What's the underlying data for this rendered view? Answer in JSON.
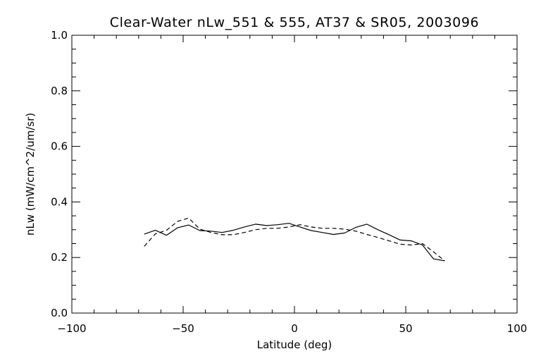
{
  "chart_data": {
    "type": "line",
    "title": "Clear-Water nLw_551 & 555, AT37 & SR05, 2003096",
    "xlabel": "Latitude (deg)",
    "ylabel": "nLw (mW/cm^2/um/sr)",
    "xlim": [
      -100,
      100
    ],
    "ylim": [
      0.0,
      1.0
    ],
    "xticks": [
      -100,
      -50,
      0,
      50,
      100
    ],
    "xtick_labels": [
      "−100",
      "−50",
      "0",
      "50",
      "100"
    ],
    "yticks": [
      0.0,
      0.2,
      0.4,
      0.6,
      0.8,
      1.0
    ],
    "ytick_labels": [
      "0.0",
      "0.2",
      "0.4",
      "0.6",
      "0.8",
      "1.0"
    ],
    "grid": false,
    "series": [
      {
        "style": "solid",
        "color": "#000000",
        "x": [
          -67.5,
          -62.5,
          -57.5,
          -52.5,
          -47.5,
          -42.5,
          -37.5,
          -32.5,
          -27.5,
          -22.5,
          -17.5,
          -12.5,
          -7.5,
          -2.5,
          2.5,
          7.5,
          12.5,
          17.5,
          22.5,
          27.5,
          32.5,
          37.5,
          42.5,
          47.5,
          52.5,
          57.5,
          62.5,
          67.5
        ],
        "y": [
          0.284,
          0.298,
          0.28,
          0.307,
          0.317,
          0.297,
          0.295,
          0.29,
          0.298,
          0.31,
          0.32,
          0.315,
          0.318,
          0.323,
          0.31,
          0.297,
          0.29,
          0.283,
          0.288,
          0.308,
          0.32,
          0.3,
          0.282,
          0.263,
          0.26,
          0.245,
          0.195,
          0.188
        ]
      },
      {
        "style": "dashed",
        "color": "#000000",
        "x": [
          -67.5,
          -62.5,
          -57.5,
          -52.5,
          -47.5,
          -42.5,
          -37.5,
          -32.5,
          -27.5,
          -22.5,
          -17.5,
          -12.5,
          -7.5,
          -2.5,
          2.5,
          7.5,
          12.5,
          17.5,
          22.5,
          27.5,
          32.5,
          37.5,
          42.5,
          47.5,
          52.5,
          57.5,
          62.5,
          67.5
        ],
        "y": [
          0.24,
          0.285,
          0.298,
          0.33,
          0.342,
          0.302,
          0.29,
          0.282,
          0.282,
          0.29,
          0.3,
          0.305,
          0.305,
          0.31,
          0.318,
          0.31,
          0.305,
          0.305,
          0.302,
          0.295,
          0.283,
          0.272,
          0.26,
          0.248,
          0.245,
          0.25,
          0.22,
          0.188
        ]
      }
    ]
  }
}
